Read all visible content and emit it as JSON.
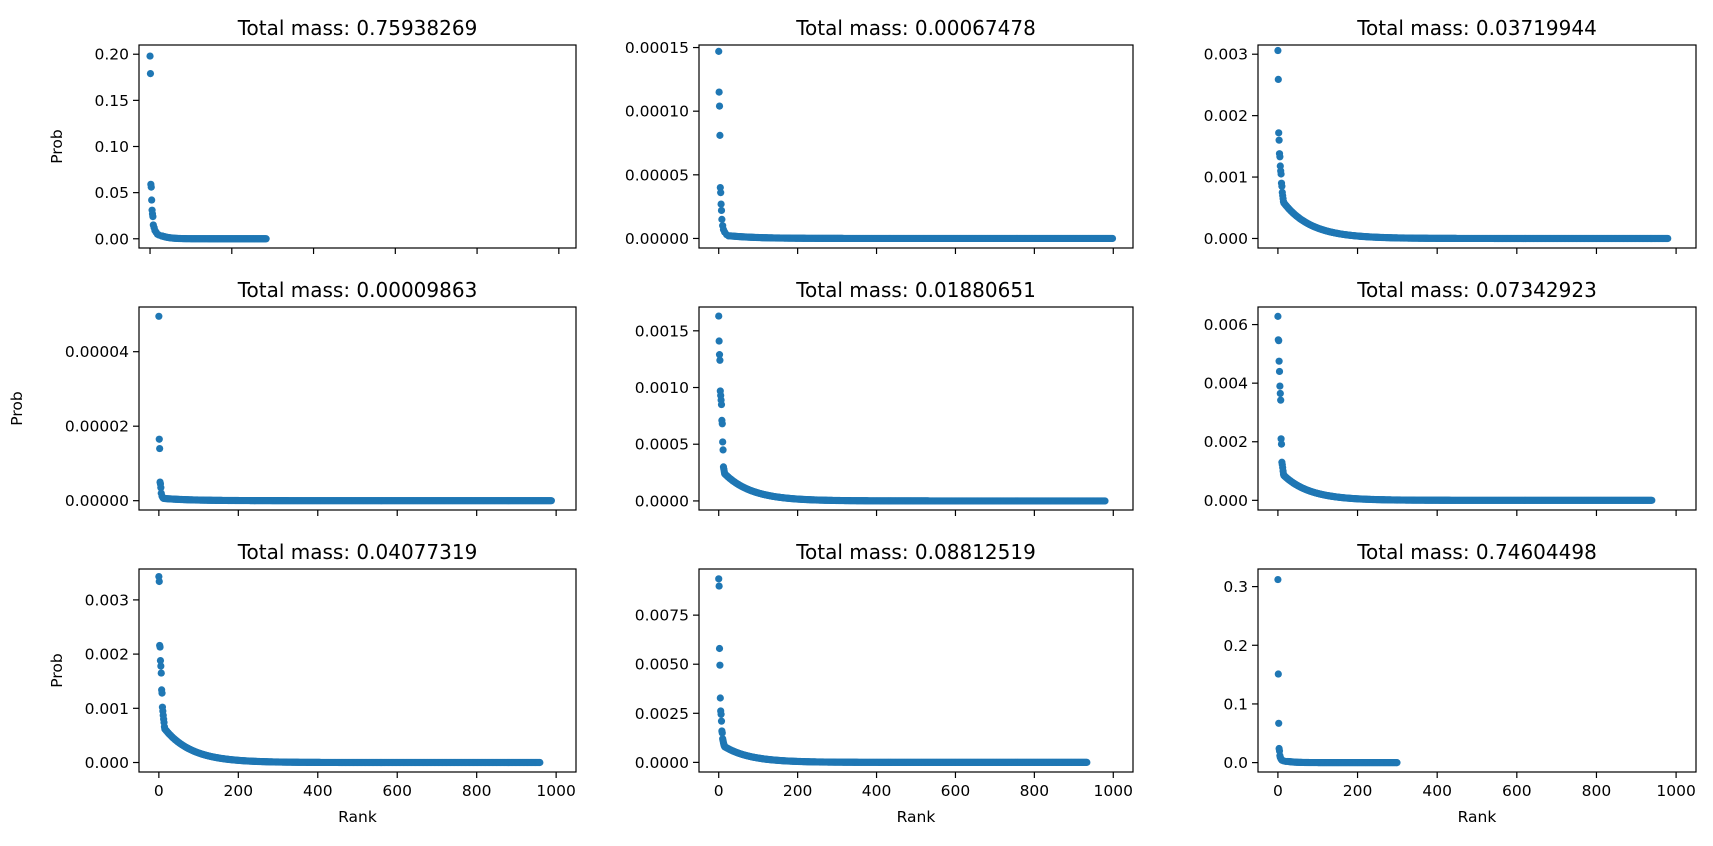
{
  "chart_data": [
    {
      "type": "scatter",
      "title": "Total mass: 0.75938269",
      "xlabel": "",
      "ylabel": "Prob",
      "n": 285,
      "xlim": [
        -27,
        1042
      ],
      "ylim": [
        -0.01,
        0.21
      ],
      "xticks": [
        0,
        200,
        400,
        600,
        800,
        1000
      ],
      "xticklabels_visible": false,
      "yticks": [
        "0.00",
        "0.05",
        "0.10",
        "0.15",
        "0.20"
      ],
      "color": "#1f77b4",
      "top_points": [
        [
          0,
          0.198
        ],
        [
          1,
          0.179
        ],
        [
          2,
          0.059
        ],
        [
          3,
          0.056
        ],
        [
          4,
          0.042
        ],
        [
          5,
          0.031
        ],
        [
          6,
          0.027
        ],
        [
          7,
          0.024
        ],
        [
          8,
          0.015
        ],
        [
          10,
          0.012
        ],
        [
          12,
          0.009
        ],
        [
          15,
          0.007
        ],
        [
          18,
          0.005
        ],
        [
          22,
          0.004
        ],
        [
          28,
          0.003
        ]
      ],
      "tail": {
        "start": 30,
        "end": 285,
        "y_start": 0.003,
        "y_end": 0.0
      }
    },
    {
      "type": "scatter",
      "title": "Total mass: 0.00067478",
      "xlabel": "",
      "ylabel": "",
      "n": 1000,
      "xlim": [
        -50,
        1050
      ],
      "ylim": [
        -7.5e-06,
        0.000152
      ],
      "xticks": [
        0,
        200,
        400,
        600,
        800,
        1000
      ],
      "xticklabels_visible": false,
      "yticks": [
        "0.00000",
        "0.00005",
        "0.00010",
        "0.00015"
      ],
      "color": "#1f77b4",
      "top_points": [
        [
          0,
          0.000147
        ],
        [
          1,
          0.000115
        ],
        [
          2,
          0.000104
        ],
        [
          3,
          8.1e-05
        ],
        [
          4,
          4e-05
        ],
        [
          5,
          3.6e-05
        ],
        [
          6,
          2.7e-05
        ],
        [
          7,
          2.2e-05
        ],
        [
          8,
          1.5e-05
        ],
        [
          10,
          1e-05
        ],
        [
          12,
          7e-06
        ],
        [
          15,
          5e-06
        ],
        [
          20,
          3e-06
        ],
        [
          25,
          2e-06
        ]
      ],
      "tail": {
        "start": 30,
        "end": 1000,
        "y_start": 2e-06,
        "y_end": 0.0
      }
    },
    {
      "type": "scatter",
      "title": "Total mass: 0.03719944",
      "xlabel": "",
      "ylabel": "",
      "n": 980,
      "xlim": [
        -50,
        1050
      ],
      "ylim": [
        -0.000155,
        0.00315
      ],
      "xticks": [
        0,
        200,
        400,
        600,
        800,
        1000
      ],
      "xticklabels_visible": false,
      "yticks": [
        "0.000",
        "0.001",
        "0.002",
        "0.003"
      ],
      "color": "#1f77b4",
      "top_points": [
        [
          0,
          0.00306
        ],
        [
          1,
          0.00259
        ],
        [
          2,
          0.00172
        ],
        [
          3,
          0.0016
        ],
        [
          4,
          0.00138
        ],
        [
          5,
          0.00133
        ],
        [
          6,
          0.00118
        ],
        [
          7,
          0.0011
        ],
        [
          8,
          0.00105
        ],
        [
          9,
          0.0009
        ],
        [
          10,
          0.00085
        ],
        [
          11,
          0.00075
        ],
        [
          12,
          0.0007
        ],
        [
          13,
          0.00065
        ],
        [
          14,
          0.0006
        ]
      ],
      "tail": {
        "start": 15,
        "end": 980,
        "y_start": 0.00058,
        "y_end": 0.0
      }
    },
    {
      "type": "scatter",
      "title": "Total mass: 0.00009863",
      "xlabel": "",
      "ylabel": "Prob",
      "n": 990,
      "xlim": [
        -50,
        1050
      ],
      "ylim": [
        -2.5e-06,
        5.2e-05
      ],
      "xticks": [
        0,
        200,
        400,
        600,
        800,
        1000
      ],
      "xticklabels_visible": false,
      "yticks": [
        "0.00000",
        "0.00002",
        "0.00004"
      ],
      "color": "#1f77b4",
      "top_points": [
        [
          0,
          4.95e-05
        ],
        [
          1,
          1.65e-05
        ],
        [
          2,
          1.4e-05
        ],
        [
          3,
          5e-06
        ],
        [
          4,
          4.5e-06
        ],
        [
          5,
          3.5e-06
        ],
        [
          6,
          2e-06
        ],
        [
          8,
          1.2e-06
        ],
        [
          10,
          8e-07
        ]
      ],
      "tail": {
        "start": 12,
        "end": 990,
        "y_start": 6e-07,
        "y_end": 0.0
      }
    },
    {
      "type": "scatter",
      "title": "Total mass: 0.01880651",
      "xlabel": "",
      "ylabel": "",
      "n": 980,
      "xlim": [
        -50,
        1050
      ],
      "ylim": [
        -8e-05,
        0.00171
      ],
      "xticks": [
        0,
        200,
        400,
        600,
        800,
        1000
      ],
      "xticklabels_visible": false,
      "yticks": [
        "0.0000",
        "0.0005",
        "0.0010",
        "0.0015"
      ],
      "color": "#1f77b4",
      "top_points": [
        [
          0,
          0.00163
        ],
        [
          1,
          0.00141
        ],
        [
          2,
          0.00129
        ],
        [
          3,
          0.00124
        ],
        [
          4,
          0.00097
        ],
        [
          5,
          0.00093
        ],
        [
          6,
          0.00089
        ],
        [
          7,
          0.00085
        ],
        [
          8,
          0.00071
        ],
        [
          9,
          0.00068
        ],
        [
          10,
          0.00052
        ],
        [
          11,
          0.00045
        ],
        [
          12,
          0.0003
        ],
        [
          13,
          0.00028
        ],
        [
          14,
          0.00026
        ]
      ],
      "tail": {
        "start": 15,
        "end": 980,
        "y_start": 0.00024,
        "y_end": 0.0
      }
    },
    {
      "type": "scatter",
      "title": "Total mass: 0.07342923",
      "xlabel": "",
      "ylabel": "",
      "n": 940,
      "xlim": [
        -50,
        1050
      ],
      "ylim": [
        -0.00033,
        0.0066
      ],
      "xticks": [
        0,
        200,
        400,
        600,
        800,
        1000
      ],
      "xticklabels_visible": false,
      "yticks": [
        "0.000",
        "0.002",
        "0.004",
        "0.006"
      ],
      "color": "#1f77b4",
      "top_points": [
        [
          0,
          0.00628
        ],
        [
          1,
          0.00548
        ],
        [
          2,
          0.00545
        ],
        [
          3,
          0.00475
        ],
        [
          4,
          0.0044
        ],
        [
          5,
          0.0039
        ],
        [
          6,
          0.00365
        ],
        [
          7,
          0.00342
        ],
        [
          8,
          0.0021
        ],
        [
          9,
          0.00192
        ],
        [
          10,
          0.0013
        ],
        [
          11,
          0.00122
        ],
        [
          12,
          0.00112
        ],
        [
          13,
          0.001
        ],
        [
          14,
          0.0009
        ]
      ],
      "tail": {
        "start": 15,
        "end": 940,
        "y_start": 0.00085,
        "y_end": 0.0
      }
    },
    {
      "type": "scatter",
      "title": "Total mass: 0.04077319",
      "xlabel": "Rank",
      "ylabel": "Prob",
      "n": 960,
      "xlim": [
        -50,
        1050
      ],
      "ylim": [
        -0.000175,
        0.00357
      ],
      "xticks": [
        0,
        200,
        400,
        600,
        800,
        1000
      ],
      "xticklabels_visible": true,
      "yticks": [
        "0.000",
        "0.001",
        "0.002",
        "0.003"
      ],
      "color": "#1f77b4",
      "top_points": [
        [
          0,
          0.00343
        ],
        [
          1,
          0.00334
        ],
        [
          2,
          0.00216
        ],
        [
          3,
          0.00213
        ],
        [
          4,
          0.00188
        ],
        [
          5,
          0.00178
        ],
        [
          6,
          0.00165
        ],
        [
          7,
          0.00134
        ],
        [
          8,
          0.00128
        ],
        [
          9,
          0.00102
        ],
        [
          10,
          0.00095
        ],
        [
          11,
          0.00087
        ],
        [
          12,
          0.0008
        ],
        [
          13,
          0.00074
        ],
        [
          14,
          0.00066
        ]
      ],
      "tail": {
        "start": 15,
        "end": 960,
        "y_start": 0.00062,
        "y_end": 0.0
      }
    },
    {
      "type": "scatter",
      "title": "Total mass: 0.08812519",
      "xlabel": "Rank",
      "ylabel": "",
      "n": 935,
      "xlim": [
        -50,
        1050
      ],
      "ylim": [
        -0.00049,
        0.00985
      ],
      "xticks": [
        0,
        200,
        400,
        600,
        800,
        1000
      ],
      "xticklabels_visible": true,
      "yticks": [
        "0.0000",
        "0.0025",
        "0.0050",
        "0.0075"
      ],
      "color": "#1f77b4",
      "top_points": [
        [
          0,
          0.00935
        ],
        [
          1,
          0.00898
        ],
        [
          2,
          0.0058
        ],
        [
          3,
          0.00495
        ],
        [
          4,
          0.00328
        ],
        [
          5,
          0.00262
        ],
        [
          6,
          0.00245
        ],
        [
          7,
          0.0021
        ],
        [
          8,
          0.0016
        ],
        [
          9,
          0.0015
        ],
        [
          10,
          0.0012
        ],
        [
          11,
          0.0011
        ],
        [
          12,
          0.001
        ],
        [
          13,
          0.00092
        ],
        [
          14,
          0.00085
        ]
      ],
      "tail": {
        "start": 15,
        "end": 935,
        "y_start": 0.0008,
        "y_end": 0.0
      }
    },
    {
      "type": "scatter",
      "title": "Total mass: 0.74604498",
      "xlabel": "Rank",
      "ylabel": "",
      "n": 300,
      "xlim": [
        -50,
        1050
      ],
      "ylim": [
        -0.016,
        0.33
      ],
      "xticks": [
        0,
        200,
        400,
        600,
        800,
        1000
      ],
      "xticklabels_visible": true,
      "yticks": [
        "0.0",
        "0.1",
        "0.2",
        "0.3"
      ],
      "color": "#1f77b4",
      "top_points": [
        [
          0,
          0.312
        ],
        [
          1,
          0.151
        ],
        [
          2,
          0.067
        ],
        [
          3,
          0.024
        ],
        [
          4,
          0.02
        ],
        [
          5,
          0.012
        ],
        [
          6,
          0.009
        ],
        [
          8,
          0.006
        ],
        [
          10,
          0.004
        ],
        [
          14,
          0.003
        ],
        [
          20,
          0.002
        ]
      ],
      "tail": {
        "start": 25,
        "end": 300,
        "y_start": 0.002,
        "y_end": 0.0
      }
    }
  ]
}
